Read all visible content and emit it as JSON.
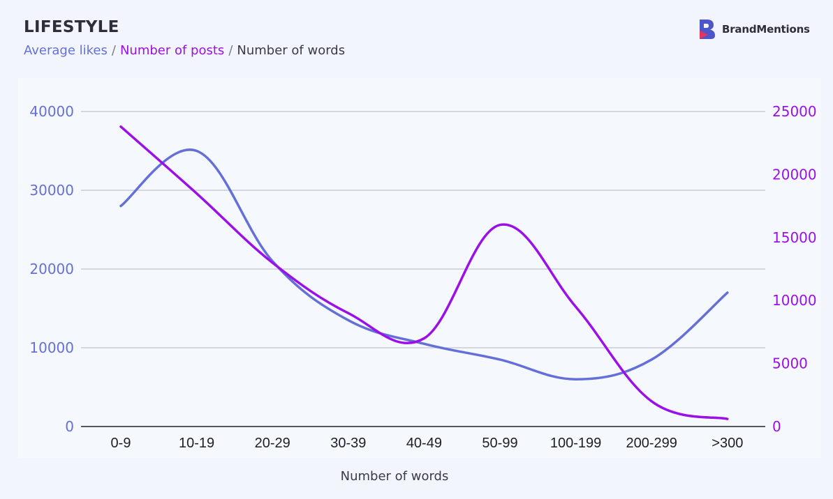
{
  "header": {
    "title": "LIFESTYLE",
    "legend": [
      {
        "label": "Average likes",
        "color": "#6470d8"
      },
      {
        "label": "Number of posts",
        "color": "#9b10e6"
      },
      {
        "label": "Number of words",
        "color": "#3a3a46"
      }
    ],
    "separator": "/"
  },
  "brand": {
    "name": "BrandMentions",
    "icon": "brandmentions-logo-icon"
  },
  "chart_data": {
    "type": "line",
    "xlabel": "Number of words",
    "categories": [
      "0-9",
      "10-19",
      "20-29",
      "30-39",
      "40-49",
      "50-99",
      "100-199",
      "200-299",
      ">300"
    ],
    "series": [
      {
        "name": "Average likes",
        "axis": "left",
        "color": "#6470d8",
        "values": [
          28000,
          35000,
          21000,
          13500,
          10500,
          8500,
          6000,
          8500,
          17000
        ]
      },
      {
        "name": "Number of posts",
        "axis": "right",
        "color": "#9b10e6",
        "values": [
          23800,
          18500,
          13000,
          9000,
          7000,
          16000,
          9500,
          2000,
          600
        ]
      }
    ],
    "y_left": {
      "min": 0,
      "max": 40000,
      "ticks": [
        0,
        10000,
        20000,
        30000,
        40000
      ],
      "color": "#6470d8"
    },
    "y_right": {
      "min": 0,
      "max": 25000,
      "ticks": [
        0,
        5000,
        10000,
        15000,
        20000,
        25000
      ],
      "color": "#9b10e6"
    },
    "grid": true,
    "grid_color": "#c9ccd8",
    "axis_line_color": "#55575f"
  }
}
